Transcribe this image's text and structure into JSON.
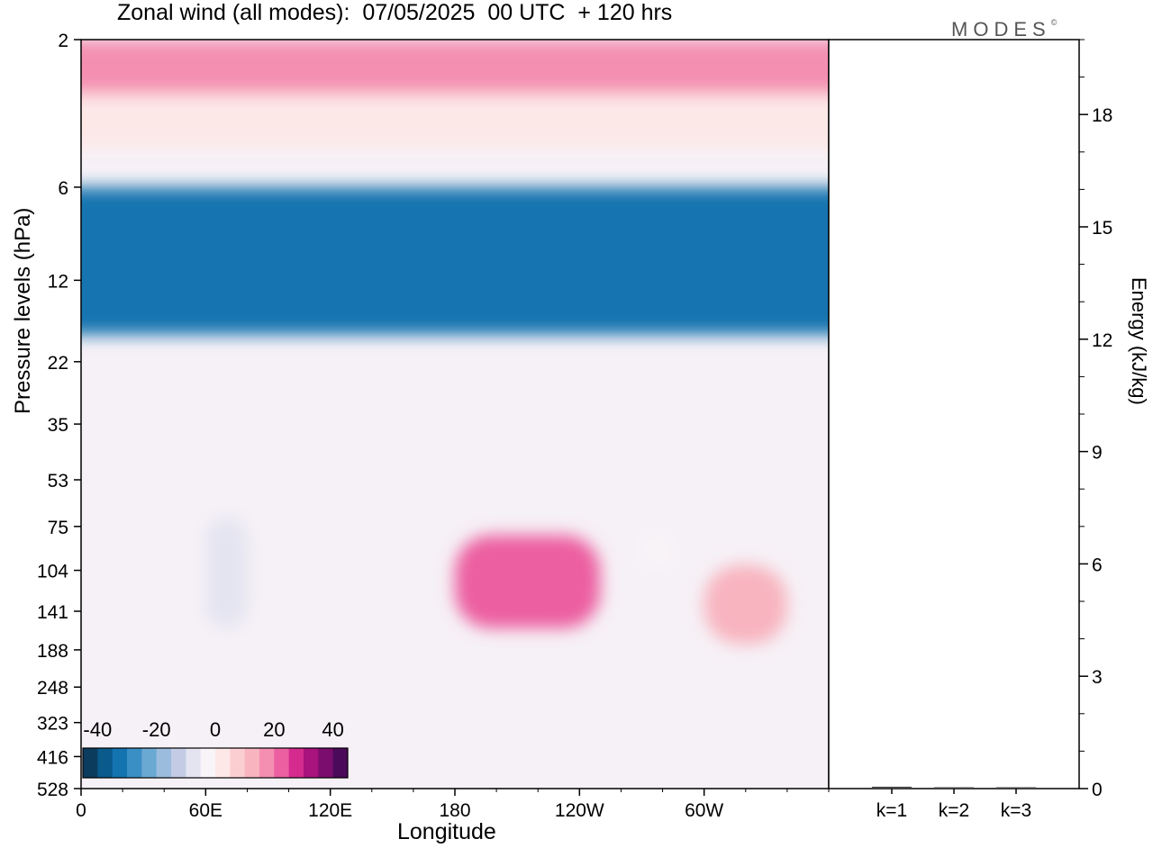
{
  "title": "Zonal wind (all modes):  07/05/2025  00 UTC  + 120 hrs",
  "brand": "MODES",
  "brand_mark": "©",
  "chart_data": [
    {
      "type": "heatmap",
      "title": "Zonal wind (all modes):  07/05/2025  00 UTC  + 120 hrs",
      "xlabel": "Longitude",
      "ylabel": "Pressure levels (hPa)",
      "x_ticks": [
        "0",
        "60E",
        "120E",
        "180",
        "120W",
        "60W"
      ],
      "x_tick_degrees": [
        0,
        60,
        120,
        180,
        240,
        300
      ],
      "x_range": [
        0,
        360
      ],
      "y_ticks": [
        2,
        6,
        12,
        22,
        35,
        53,
        75,
        104,
        141,
        188,
        248,
        323,
        416,
        528
      ],
      "y_scale": "log",
      "y_inverted": true,
      "colorbar": {
        "ticks": [
          "-40",
          "-20",
          "0",
          "20",
          "40"
        ],
        "range": [
          -45,
          45
        ],
        "step": 5,
        "colors": [
          "#0b3c5d",
          "#0a5a8c",
          "#1474b0",
          "#3a8fc4",
          "#6aa9d2",
          "#9bbcdd",
          "#c3cce4",
          "#e4e4f1",
          "#f9f4f8",
          "#fde8e8",
          "#fbcfd2",
          "#f8b4bf",
          "#f48fb1",
          "#ec5fa0",
          "#d52b8e",
          "#a8137d",
          "#7a0d6e",
          "#4b0a5a"
        ],
        "placement": "bottom-left"
      },
      "features": [
        {
          "lon": [
            0,
            360
          ],
          "p": [
            2,
            3
          ],
          "value": 15
        },
        {
          "lon": [
            0,
            360
          ],
          "p": [
            3,
            4.5
          ],
          "value": 0
        },
        {
          "lon": [
            0,
            360
          ],
          "p": [
            6,
            18
          ],
          "value": -35
        },
        {
          "lon": [
            60,
            80
          ],
          "p": [
            70,
            160
          ],
          "value": -10
        },
        {
          "lon": [
            180,
            250
          ],
          "p": [
            80,
            160
          ],
          "value": 20
        },
        {
          "lon": [
            270,
            285
          ],
          "p": [
            80,
            100
          ],
          "value": -5
        },
        {
          "lon": [
            300,
            340
          ],
          "p": [
            100,
            180
          ],
          "value": 12
        }
      ]
    },
    {
      "type": "bar",
      "ylabel": "Energy (kJ/kg)",
      "categories": [
        "k=1",
        "k=2",
        "k=3"
      ],
      "values": [
        0.05,
        0.02,
        0.02
      ],
      "ylim": [
        0,
        20
      ],
      "y_ticks": [
        0,
        3,
        6,
        9,
        12,
        15,
        18
      ]
    }
  ]
}
